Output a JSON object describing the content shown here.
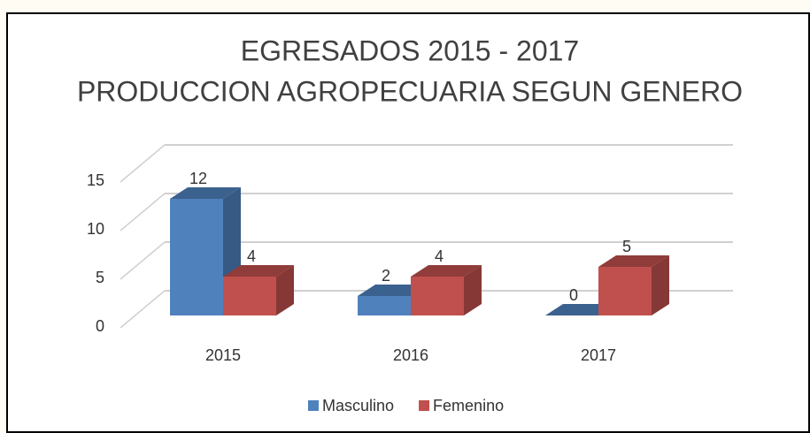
{
  "chart_data": {
    "type": "bar3d",
    "title": "EGRESADOS 2015 - 2017",
    "subtitle": "PRODUCCION AGROPECUARIA SEGUN GENERO",
    "categories": [
      "2015",
      "2016",
      "2017"
    ],
    "series": [
      {
        "name": "Masculino",
        "color": "#4f81bd",
        "values": [
          12,
          2,
          0
        ]
      },
      {
        "name": "Femenino",
        "color": "#c0504d",
        "values": [
          4,
          4,
          5
        ]
      }
    ],
    "ylim": [
      0,
      15
    ],
    "yticks": [
      0,
      5,
      10,
      15
    ],
    "grid": true,
    "legend": "bottom",
    "data_labels": true
  }
}
